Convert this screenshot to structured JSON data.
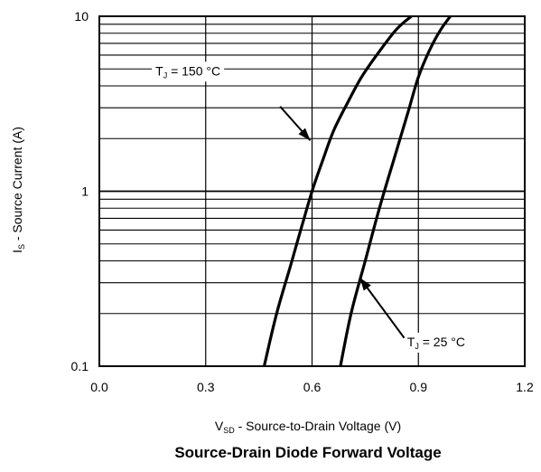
{
  "chart_data": {
    "type": "line",
    "title": "Source-Drain Diode Forward Voltage",
    "xlabel": {
      "main": "V",
      "sub": "SD",
      "rest": " - Source-to-Drain Voltage (V)"
    },
    "ylabel": {
      "main": "I",
      "sub": "S",
      "rest": " - Source Current (A)"
    },
    "x_scale": "linear",
    "y_scale": "log",
    "xlim": [
      0.0,
      1.2
    ],
    "ylim": [
      0.1,
      10
    ],
    "x_ticks": [
      "0.0",
      "0.3",
      "0.6",
      "0.9",
      "1.2"
    ],
    "x_tick_values": [
      0.0,
      0.3,
      0.6,
      0.9,
      1.2
    ],
    "y_ticks": [
      "0.1",
      "1",
      "10"
    ],
    "y_tick_values": [
      0.1,
      1,
      10
    ],
    "grid": true,
    "series": [
      {
        "name": "TJ = 150 °C",
        "x": [
          0.465,
          0.5,
          0.54,
          0.57,
          0.6,
          0.63,
          0.66,
          0.7,
          0.74,
          0.79,
          0.84,
          0.88
        ],
        "y": [
          0.1,
          0.2,
          0.38,
          0.62,
          1.0,
          1.5,
          2.2,
          3.2,
          4.5,
          6.3,
          8.5,
          10
        ]
      },
      {
        "name": "TJ = 25 °C",
        "x": [
          0.68,
          0.71,
          0.75,
          0.79,
          0.83,
          0.87,
          0.9,
          0.93,
          0.96,
          0.99
        ],
        "y": [
          0.1,
          0.2,
          0.4,
          0.8,
          1.5,
          2.8,
          4.5,
          6.3,
          8.2,
          10
        ]
      }
    ],
    "annotations": [
      {
        "series": 0,
        "label_main": "T",
        "label_sub": "J",
        "label_rest": " = 150 °C",
        "arrow_to": [
          0.595,
          1.95
        ]
      },
      {
        "series": 1,
        "label_main": "T",
        "label_sub": "J",
        "label_rest": " = 25 °C",
        "arrow_to": [
          0.735,
          0.32
        ]
      }
    ]
  }
}
